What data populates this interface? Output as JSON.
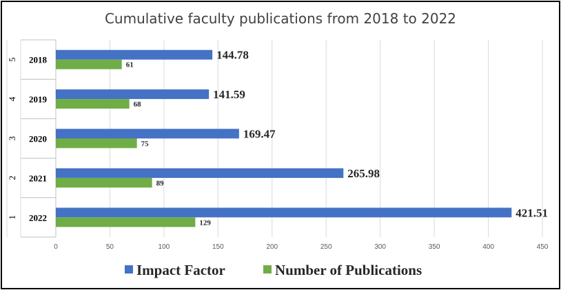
{
  "chart_data": {
    "type": "bar",
    "orientation": "horizontal",
    "title": "Cumulative faculty publications from  2018 to 2022",
    "categories": [
      {
        "index": "5",
        "year": "2018"
      },
      {
        "index": "4",
        "year": "2019"
      },
      {
        "index": "3",
        "year": "2020"
      },
      {
        "index": "2",
        "year": "2021"
      },
      {
        "index": "1",
        "year": "2022"
      }
    ],
    "series": [
      {
        "name": "Impact Factor",
        "color": "#4472C4",
        "values": [
          144.78,
          141.59,
          169.47,
          265.98,
          421.51
        ],
        "labels": [
          "144.78",
          "141.59",
          "169.47",
          "265.98",
          "421.51"
        ]
      },
      {
        "name": "Number of Publications",
        "color": "#70AD47",
        "values": [
          61,
          68,
          75,
          89,
          129
        ],
        "labels": [
          "61",
          "68",
          "75",
          "89",
          "129"
        ]
      }
    ],
    "xlim": [
      0,
      450
    ],
    "xticks": [
      "0",
      "50",
      "100",
      "150",
      "200",
      "250",
      "300",
      "350",
      "400",
      "450"
    ],
    "grid": "vertical",
    "legend_position": "bottom"
  }
}
